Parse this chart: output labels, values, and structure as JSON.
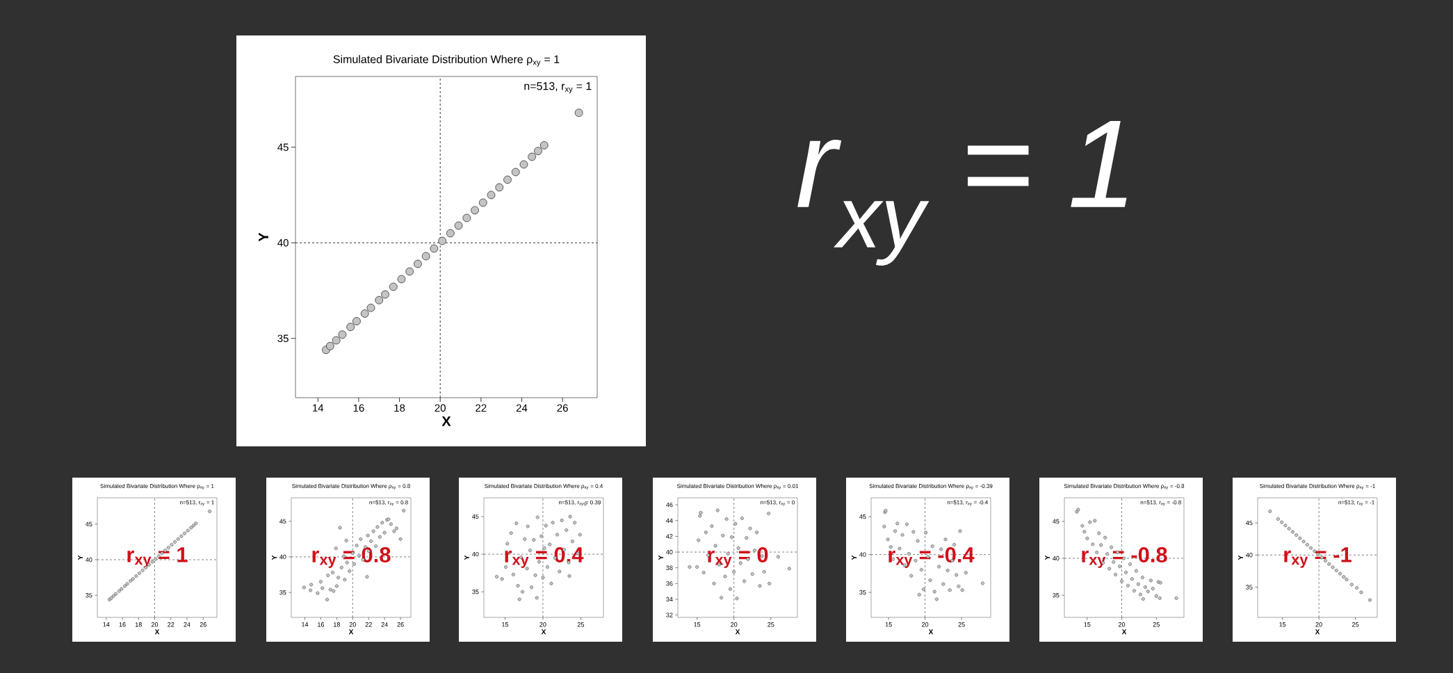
{
  "chart_data": [
    {
      "type": "scatter",
      "title": "Simulated Bivariate Distribution Where ρ$_{xy}$ = 1",
      "xlabel": "X",
      "ylabel": "Y",
      "marker": "circle",
      "color": "#c4c4c4",
      "x": [
        14.4,
        14.6,
        14.9,
        15.2,
        15.6,
        15.9,
        16.3,
        16.6,
        17.0,
        17.3,
        17.7,
        18.1,
        18.5,
        18.9,
        19.3,
        19.7,
        20.1,
        20.5,
        20.9,
        21.3,
        21.7,
        22.1,
        22.5,
        22.9,
        23.3,
        23.7,
        24.1,
        24.5,
        24.8,
        25.1,
        26.8
      ],
      "values": [
        34.4,
        34.6,
        34.9,
        35.2,
        35.6,
        35.9,
        36.3,
        36.6,
        37.0,
        37.3,
        37.7,
        38.1,
        38.5,
        38.9,
        39.3,
        39.7,
        40.1,
        40.5,
        40.9,
        41.3,
        41.7,
        42.1,
        42.5,
        42.9,
        43.3,
        43.7,
        44.1,
        44.5,
        44.8,
        45.1,
        46.8
      ],
      "xlim": [
        12.9,
        27.7
      ],
      "ylim": [
        31.9,
        48.7
      ],
      "xticks": [
        14,
        16,
        18,
        20,
        22,
        24,
        26
      ],
      "yticks": [
        35,
        40,
        45
      ],
      "ref_lines": [
        {
          "axis": "x",
          "value": 20,
          "line_style": "dashed",
          "color": "#000000"
        },
        {
          "axis": "y",
          "value": 40,
          "line_style": "dashed",
          "color": "#000000"
        }
      ],
      "annotations": [
        "n=513, r$_{xy}$ = 1",
        "*r*$_{xy}$ = 1"
      ]
    },
    {
      "type": "scatter",
      "title": "Simulated Bivariate Distribution Where ρ$_{xy}$ = 1",
      "xlabel": "X",
      "ylabel": "Y",
      "marker": "circle",
      "color": "#c4c4c4",
      "x": [
        14.4,
        14.6,
        14.9,
        15.2,
        15.6,
        15.9,
        16.3,
        16.6,
        17.0,
        17.3,
        17.7,
        18.1,
        18.5,
        18.9,
        19.3,
        19.7,
        20.1,
        20.5,
        20.9,
        21.3,
        21.7,
        22.1,
        22.5,
        22.9,
        23.3,
        23.7,
        24.1,
        24.5,
        24.8,
        25.1,
        26.8
      ],
      "values": [
        34.4,
        34.6,
        34.9,
        35.2,
        35.6,
        35.9,
        36.3,
        36.6,
        37.0,
        37.3,
        37.7,
        38.1,
        38.5,
        38.9,
        39.3,
        39.7,
        40.1,
        40.5,
        40.9,
        41.3,
        41.7,
        42.1,
        42.5,
        42.9,
        43.3,
        43.7,
        44.1,
        44.5,
        44.8,
        45.1,
        46.8
      ],
      "xlim": [
        12.9,
        27.7
      ],
      "ylim": [
        31.9,
        48.7
      ],
      "xticks": [
        14,
        16,
        18,
        20,
        22,
        24,
        26
      ],
      "yticks": [
        35,
        40,
        45
      ],
      "ref_lines": [
        {
          "axis": "x",
          "value": 20,
          "line_style": "dashed",
          "color": "#000000"
        },
        {
          "axis": "y",
          "value": 40,
          "line_style": "dashed",
          "color": "#000000"
        }
      ],
      "annotations": [
        "n=513, r$_{xy}$ = 1",
        "r$_{xy}$ = 1"
      ]
    },
    {
      "type": "scatter",
      "title": "Simulated Bivariate Distribution Where ρ$_{xy}$ = 0.8",
      "xlabel": "X",
      "ylabel": "Y",
      "marker": "circle",
      "color": "#c4c4c4",
      "x": [
        13.9,
        14.7,
        14.8,
        15.6,
        16.2,
        16.8,
        16.0,
        17.2,
        17.6,
        18.0,
        16.9,
        17.5,
        18.2,
        18.6,
        19.0,
        19.3,
        18.9,
        19.6,
        20.0,
        20.2,
        20.5,
        20.8,
        21.0,
        21.3,
        21.6,
        21.9,
        22.0,
        22.3,
        22.6,
        22.9,
        23.1,
        23.4,
        23.7,
        24.0,
        24.3,
        24.5,
        24.8,
        25.2,
        25.5,
        26.0,
        17.9,
        19.2,
        18.4,
        21.8,
        26.4
      ],
      "values": [
        35.7,
        35.3,
        36.1,
        34.9,
        35.6,
        34.0,
        36.5,
        35.4,
        35.2,
        35.9,
        37.4,
        37.8,
        37.1,
        38.5,
        36.8,
        39.2,
        40.1,
        38.0,
        40.5,
        39.0,
        41.6,
        40.2,
        42.5,
        39.6,
        41.4,
        43.0,
        40.8,
        42.2,
        43.6,
        41.5,
        44.2,
        42.8,
        44.8,
        43.4,
        45.2,
        45.3,
        44.6,
        43.6,
        44.0,
        42.5,
        41.2,
        42.3,
        44.1,
        37.2,
        46.5
      ],
      "xlim": [
        12.3,
        27.3
      ],
      "ylim": [
        31.5,
        48.3
      ],
      "xticks": [
        14,
        16,
        18,
        20,
        22,
        24,
        26
      ],
      "yticks": [
        35,
        40,
        45
      ],
      "ref_lines": [
        {
          "axis": "x",
          "value": 20,
          "line_style": "dashed",
          "color": "#000000"
        },
        {
          "axis": "y",
          "value": 40,
          "line_style": "dashed",
          "color": "#000000"
        }
      ],
      "annotations": [
        "n=513, r$_{xy}$ = 0.8",
        "r$_{xy}$ = 0.8"
      ]
    },
    {
      "type": "scatter",
      "title": "Simulated Bivariate Distribution Where ρ$_{xy}$ = 0.4",
      "xlabel": "X",
      "ylabel": "Y",
      "marker": "circle",
      "color": "#c4c4c4",
      "x": [
        13.9,
        14.6,
        15.1,
        15.3,
        15.8,
        16.1,
        16.5,
        16.7,
        16.9,
        17.1,
        17.3,
        17.6,
        17.9,
        18.0,
        18.3,
        18.5,
        18.8,
        19.0,
        19.2,
        19.3,
        19.5,
        19.8,
        20.0,
        20.2,
        20.4,
        20.6,
        20.9,
        21.1,
        21.3,
        21.6,
        21.9,
        22.2,
        22.5,
        22.8,
        23.1,
        23.4,
        23.6,
        23.9,
        24.2,
        24.6,
        24.9,
        23.5,
        25.6
      ],
      "values": [
        37.0,
        36.7,
        38.3,
        41.4,
        42.8,
        37.3,
        44.1,
        35.8,
        34.0,
        39.6,
        35.0,
        42.0,
        38.1,
        43.7,
        40.5,
        35.6,
        41.9,
        37.2,
        34.2,
        44.9,
        39.0,
        42.4,
        36.9,
        40.8,
        43.8,
        38.3,
        41.3,
        36.1,
        44.2,
        39.5,
        42.6,
        37.7,
        44.5,
        40.6,
        43.2,
        38.9,
        45.0,
        41.7,
        44.2,
        40.1,
        42.6,
        37.1,
        46.7
      ],
      "xlim": [
        12.2,
        28.0
      ],
      "ylim": [
        31.6,
        47.5
      ],
      "xticks": [
        15,
        20,
        25
      ],
      "yticks": [
        35,
        40,
        45
      ],
      "ref_lines": [
        {
          "axis": "x",
          "value": 20,
          "line_style": "dashed",
          "color": "#000000"
        },
        {
          "axis": "y",
          "value": 40,
          "line_style": "dashed",
          "color": "#000000"
        }
      ],
      "annotations": [
        "n=513, r$_{xy}$ = 0.39",
        "r$_{xy}$ = 0.4"
      ]
    },
    {
      "type": "scatter",
      "title": "Simulated Bivariate Distribution Where ρ$_{xy}$ = 0.01",
      "xlabel": "X",
      "ylabel": "Y",
      "marker": "circle",
      "color": "#c4c4c4",
      "x": [
        14.0,
        15.0,
        15.2,
        15.4,
        15.5,
        15.9,
        16.2,
        16.5,
        17.0,
        17.3,
        17.5,
        17.8,
        18.0,
        18.3,
        18.5,
        18.8,
        19.0,
        19.2,
        19.5,
        19.7,
        20.0,
        20.2,
        20.4,
        20.6,
        20.9,
        21.1,
        21.4,
        21.7,
        21.9,
        22.2,
        22.5,
        22.8,
        23.1,
        23.5,
        23.8,
        24.1,
        24.7,
        24.8,
        26.0,
        27.5
      ],
      "values": [
        38.1,
        38.1,
        41.5,
        44.6,
        45.0,
        37.4,
        42.5,
        39.6,
        43.3,
        36.0,
        40.8,
        45.3,
        38.4,
        34.2,
        42.1,
        36.9,
        44.2,
        39.8,
        35.3,
        41.9,
        37.5,
        43.6,
        34.1,
        40.5,
        38.6,
        44.3,
        36.3,
        41.8,
        39.1,
        43.0,
        37.2,
        40.2,
        42.5,
        35.7,
        39.5,
        37.5,
        44.9,
        36.0,
        39.4,
        37.9
      ],
      "xlim": [
        12.4,
        28.6
      ],
      "ylim": [
        31.7,
        46.9
      ],
      "xticks": [
        15,
        20,
        25
      ],
      "yticks": [
        32,
        34,
        36,
        38,
        40,
        42,
        44,
        46
      ],
      "ref_lines": [
        {
          "axis": "x",
          "value": 20,
          "line_style": "dashed",
          "color": "#000000"
        },
        {
          "axis": "y",
          "value": 40,
          "line_style": "dashed",
          "color": "#000000"
        }
      ],
      "annotations": [
        "n=513, r$_{xy}$ = 0",
        "r$_{xy}$ = 0"
      ]
    },
    {
      "type": "scatter",
      "title": "Simulated Bivariate Distribution Where ρ$_{xy}$ = -0.39",
      "xlabel": "X",
      "ylabel": "Y",
      "marker": "circle",
      "color": "#c4c4c4",
      "x": [
        14.5,
        14.6,
        14.4,
        14.9,
        15.3,
        15.6,
        15.9,
        16.2,
        16.5,
        16.9,
        17.2,
        17.5,
        17.8,
        18.1,
        18.4,
        18.7,
        19.0,
        19.2,
        19.5,
        19.8,
        20.1,
        20.4,
        20.7,
        21.0,
        21.3,
        21.6,
        21.9,
        22.2,
        22.5,
        22.8,
        23.1,
        23.4,
        23.7,
        24.0,
        24.3,
        24.6,
        25.1,
        25.6,
        27.9,
        24.8
      ],
      "values": [
        45.6,
        45.8,
        43.7,
        42.0,
        41.0,
        39.4,
        43.1,
        44.1,
        40.8,
        42.6,
        38.6,
        44.0,
        40.1,
        37.2,
        43.0,
        39.2,
        41.8,
        34.7,
        38.0,
        35.4,
        42.9,
        39.7,
        36.6,
        41.1,
        35.1,
        34.1,
        38.4,
        40.7,
        36.1,
        42.0,
        37.9,
        35.3,
        39.2,
        41.3,
        37.3,
        35.8,
        35.3,
        37.6,
        36.2,
        43.1
      ],
      "xlim": [
        12.6,
        29.0
      ],
      "ylim": [
        31.7,
        47.5
      ],
      "xticks": [
        15,
        20,
        25
      ],
      "yticks": [
        35,
        40,
        45
      ],
      "ref_lines": [
        {
          "axis": "x",
          "value": 20,
          "line_style": "dashed",
          "color": "#000000"
        },
        {
          "axis": "y",
          "value": 40,
          "line_style": "dashed",
          "color": "#000000"
        }
      ],
      "annotations": [
        "n=513, r$_{xy}$ = -0.4",
        "r$_{xy}$ = -0.4"
      ]
    },
    {
      "type": "scatter",
      "title": "Simulated Bivariate Distribution Where ρ$_{xy}$ = -0.8",
      "xlabel": "X",
      "ylabel": "Y",
      "marker": "circle",
      "color": "#c4c4c4",
      "x": [
        13.5,
        13.7,
        14.3,
        14.6,
        15.0,
        15.4,
        15.8,
        16.1,
        16.4,
        16.7,
        17.0,
        17.3,
        17.6,
        17.9,
        18.2,
        18.5,
        18.8,
        19.1,
        19.4,
        19.7,
        20.0,
        20.3,
        20.6,
        20.9,
        21.2,
        21.5,
        21.8,
        22.1,
        22.4,
        22.7,
        23.0,
        23.1,
        23.4,
        23.8,
        24.2,
        24.5,
        25.0,
        25.3,
        25.6,
        25.5,
        27.9
      ],
      "values": [
        46.3,
        46.6,
        44.4,
        43.6,
        42.7,
        44.9,
        41.9,
        45.1,
        40.8,
        43.4,
        41.8,
        39.4,
        42.8,
        40.6,
        38.6,
        41.5,
        39.5,
        37.8,
        40.8,
        38.9,
        36.9,
        40.0,
        38.1,
        36.3,
        39.2,
        37.2,
        35.6,
        38.3,
        36.5,
        35.1,
        37.4,
        34.5,
        36.1,
        35.5,
        37.0,
        35.9,
        34.9,
        36.8,
        36.7,
        34.6,
        34.6
      ],
      "xlim": [
        11.7,
        29.0
      ],
      "ylim": [
        32.0,
        48.2
      ],
      "xticks": [
        15,
        20,
        25
      ],
      "yticks": [
        35,
        40,
        45
      ],
      "ref_lines": [
        {
          "axis": "x",
          "value": 20,
          "line_style": "dashed",
          "color": "#000000"
        },
        {
          "axis": "y",
          "value": 40,
          "line_style": "dashed",
          "color": "#000000"
        }
      ],
      "annotations": [
        "n=513, r$_{xy}$ = -0.8",
        "r$_{xy}$ = -0.8"
      ]
    },
    {
      "type": "scatter",
      "title": "Simulated Bivariate Distribution Where ρ$_{xy}$ = -1",
      "xlabel": "X",
      "ylabel": "Y",
      "marker": "circle",
      "color": "#c4c4c4",
      "x": [
        13.3,
        14.4,
        14.9,
        15.4,
        15.9,
        16.4,
        16.9,
        17.4,
        17.9,
        18.4,
        18.9,
        19.4,
        19.9,
        20.4,
        20.9,
        21.4,
        21.9,
        22.4,
        22.9,
        23.4,
        23.8,
        24.5,
        25.2,
        25.8,
        27.0
      ],
      "values": [
        46.8,
        45.6,
        45.1,
        44.6,
        44.1,
        43.6,
        43.1,
        42.6,
        42.1,
        41.6,
        41.1,
        40.6,
        40.1,
        39.6,
        39.1,
        38.6,
        38.1,
        37.6,
        37.1,
        36.6,
        36.2,
        35.4,
        34.9,
        34.2,
        33.0
      ],
      "xlim": [
        11.6,
        28.0
      ],
      "ylim": [
        30.3,
        48.9
      ],
      "xticks": [
        15,
        20,
        25
      ],
      "yticks": [
        35,
        40,
        45
      ],
      "ref_lines": [
        {
          "axis": "x",
          "value": 20,
          "line_style": "dashed",
          "color": "#000000"
        },
        {
          "axis": "y",
          "value": 40,
          "line_style": "dashed",
          "color": "#000000"
        }
      ],
      "annotations": [
        "n=513, r$_{xy}$ = -1",
        "r$_{xy}$ = -1"
      ]
    }
  ]
}
